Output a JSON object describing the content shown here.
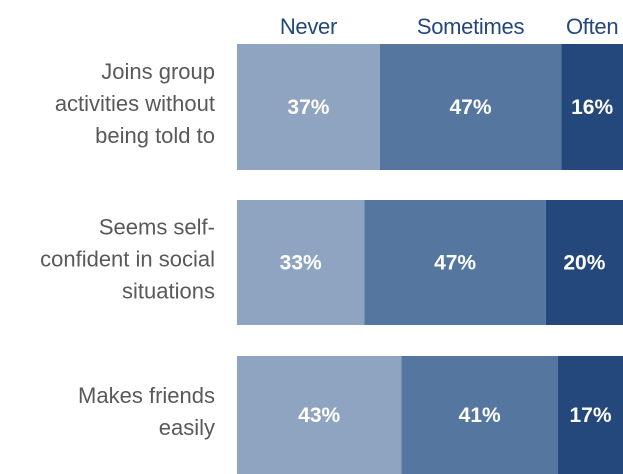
{
  "chart_data": {
    "type": "bar",
    "orientation": "horizontal",
    "stacked": true,
    "normalized_percent": true,
    "title": "",
    "xlabel": "",
    "ylabel": "",
    "grid": false,
    "legend_position": "top",
    "categories": [
      [
        "Joins group",
        "activities without",
        "being told to"
      ],
      [
        "Seems self-",
        "confident in social",
        "situations"
      ],
      [
        "Makes friends",
        "easily"
      ]
    ],
    "series": [
      {
        "name": "Never",
        "color": "#8ea4c0",
        "values": [
          37,
          33,
          43
        ],
        "labels": [
          "37%",
          "33%",
          "43%"
        ]
      },
      {
        "name": "Sometimes",
        "color": "#55779f",
        "values": [
          47,
          47,
          41
        ],
        "labels": [
          "47%",
          "47%",
          "41%"
        ]
      },
      {
        "name": "Often",
        "color": "#24487b",
        "values": [
          16,
          20,
          17
        ],
        "labels": [
          "16%",
          "20%",
          "17%"
        ]
      }
    ],
    "legend_text_color": "#24487b",
    "category_text_color": "#595959",
    "value_text_color": "#ffffff"
  }
}
